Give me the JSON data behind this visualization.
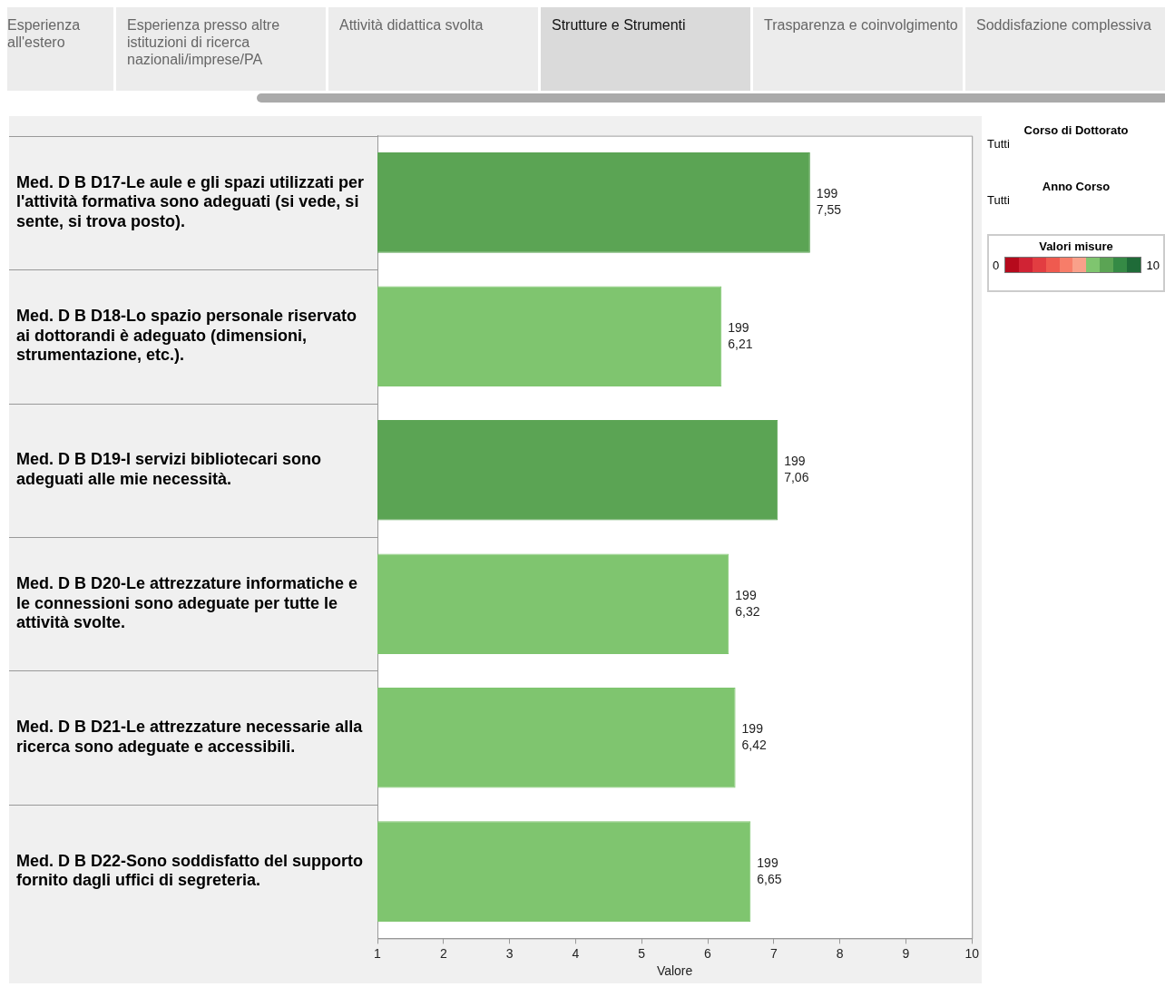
{
  "chart_data": {
    "type": "bar",
    "orientation": "horizontal",
    "categories": [
      "Med. D B D17-Le aule e gli spazi utilizzati per l'attività formativa sono adeguati (si vede, si sente, si trova posto).",
      "Med. D B D18-Lo spazio personale riservato ai dottorandi è adeguato (dimensioni, strumentazione, etc.).",
      "Med. D B D19-I servizi bibliotecari sono adeguati alle mie necessità.",
      "Med. D B D20-Le attrezzature informatiche e le connessioni sono adeguate per tutte le attività svolte.",
      "Med. D B D21-Le attrezzature necessarie alla ricerca sono adeguate e accessibili.",
      "Med. D B D22-Sono soddisfatto del supporto fornito dagli uffici di segreteria."
    ],
    "values": [
      7.55,
      6.21,
      7.06,
      6.32,
      6.42,
      6.65
    ],
    "colors": [
      "#5ba454",
      "#7fc56f",
      "#5ba454",
      "#7fc56f",
      "#7fc56f",
      "#7fc56f"
    ],
    "value_labels": [
      "199\n7,55",
      "199\n6,21",
      "199\n7,06",
      "199\n6,32",
      "199\n6,42",
      "199\n6,65"
    ],
    "xlabel": "Valore",
    "xlim": [
      1,
      10
    ],
    "xticks": [
      1,
      2,
      3,
      4,
      5,
      6,
      7,
      8,
      9,
      10
    ],
    "clabel": "Valori misure",
    "legend": false,
    "annotations": [
      "Esperienza all'estero",
      "Esperienza presso altre istituzioni di ricerca nazionali/imprese/PA",
      "Attività didattica svolta",
      "Strutture e Strumenti",
      "Trasparenza e coinvolgimento",
      "Soddisfazione complessiva",
      "Corso di Dottorato",
      "Tutti",
      "Anno Corso",
      "Tutti",
      "0",
      "10"
    ]
  }
}
